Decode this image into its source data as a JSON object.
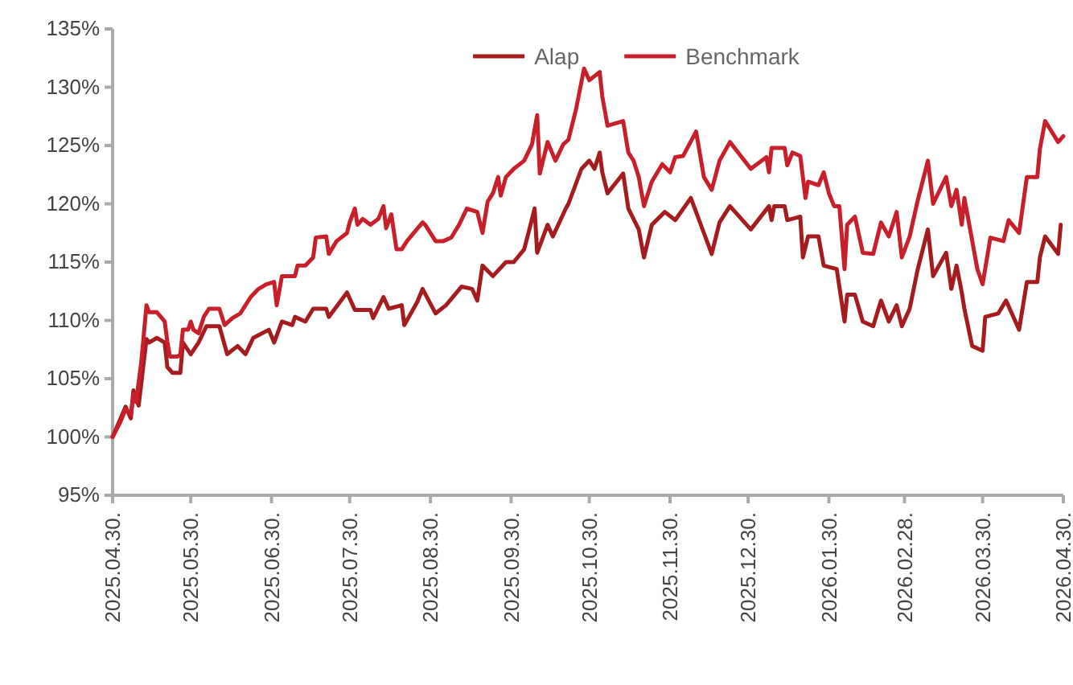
{
  "chart_data": {
    "type": "line",
    "legend": "top",
    "marker": "none",
    "line_style": "solid",
    "grid": false,
    "xlim": [
      "2025-04-30",
      "2026-04-30"
    ],
    "xticks": [
      {
        "value": "2025-04-30",
        "label": "2025.04.30."
      },
      {
        "value": "2025-05-30",
        "label": "2025.05.30."
      },
      {
        "value": "2025-06-30",
        "label": "2025.06.30."
      },
      {
        "value": "2025-07-30",
        "label": "2025.07.30."
      },
      {
        "value": "2025-08-30",
        "label": "2025.08.30."
      },
      {
        "value": "2025-09-30",
        "label": "2025.09.30."
      },
      {
        "value": "2025-10-30",
        "label": "2025.10.30."
      },
      {
        "value": "2025-11-30",
        "label": "2025.11.30."
      },
      {
        "value": "2025-12-30",
        "label": "2025.12.30."
      },
      {
        "value": "2026-01-30",
        "label": "2026.01.30."
      },
      {
        "value": "2026-02-28",
        "label": "2026.02.28."
      },
      {
        "value": "2026-03-30",
        "label": "2026.03.30."
      },
      {
        "value": "2026-04-30",
        "label": "2026.04.30."
      }
    ],
    "ylim": [
      95,
      135
    ],
    "yticks": [
      {
        "value": 95,
        "label": "95%"
      },
      {
        "value": 100,
        "label": "100%"
      },
      {
        "value": 105,
        "label": "105%"
      },
      {
        "value": 110,
        "label": "110%"
      },
      {
        "value": 115,
        "label": "115%"
      },
      {
        "value": 120,
        "label": "120%"
      },
      {
        "value": 125,
        "label": "125%"
      },
      {
        "value": 130,
        "label": "130%"
      },
      {
        "value": 135,
        "label": "135%"
      }
    ],
    "series": [
      {
        "name": "Alap",
        "color": "#a51c1f",
        "x": [
          "2025-04-30",
          "2025-05-05",
          "2025-05-07",
          "2025-05-08",
          "2025-05-10",
          "2025-05-13",
          "2025-05-14",
          "2025-05-17",
          "2025-05-20",
          "2025-05-21",
          "2025-05-23",
          "2025-05-26",
          "2025-05-27",
          "2025-05-30",
          "2025-06-02",
          "2025-06-05",
          "2025-06-10",
          "2025-06-13",
          "2025-06-17",
          "2025-06-20",
          "2025-06-23",
          "2025-06-29",
          "2025-07-01",
          "2025-07-04",
          "2025-07-08",
          "2025-07-09",
          "2025-07-13",
          "2025-07-16",
          "2025-07-21",
          "2025-07-22",
          "2025-07-29",
          "2025-08-01",
          "2025-08-07",
          "2025-08-08",
          "2025-08-12",
          "2025-08-14",
          "2025-08-19",
          "2025-08-20",
          "2025-08-25",
          "2025-08-27",
          "2025-09-01",
          "2025-09-05",
          "2025-09-11",
          "2025-09-15",
          "2025-09-17",
          "2025-09-19",
          "2025-09-23",
          "2025-09-28",
          "2025-10-01",
          "2025-10-05",
          "2025-10-07",
          "2025-10-09",
          "2025-10-10",
          "2025-10-14",
          "2025-10-16",
          "2025-10-21",
          "2025-10-22",
          "2025-10-27",
          "2025-10-30",
          "2025-11-01",
          "2025-11-03",
          "2025-11-04",
          "2025-11-06",
          "2025-11-12",
          "2025-11-14",
          "2025-11-18",
          "2025-11-20",
          "2025-11-23",
          "2025-11-28",
          "2025-12-02",
          "2025-12-08",
          "2025-12-13",
          "2025-12-16",
          "2025-12-19",
          "2025-12-23",
          "2025-12-31",
          "2026-01-07",
          "2026-01-08",
          "2026-01-09",
          "2026-01-13",
          "2026-01-14",
          "2026-01-19",
          "2026-01-20",
          "2026-01-22",
          "2026-01-26",
          "2026-01-28",
          "2026-02-02",
          "2026-02-05",
          "2026-02-06",
          "2026-02-09",
          "2026-02-12",
          "2026-02-16",
          "2026-02-19",
          "2026-02-22",
          "2026-02-25",
          "2026-02-27",
          "2026-03-02",
          "2026-03-05",
          "2026-03-09",
          "2026-03-11",
          "2026-03-16",
          "2026-03-18",
          "2026-03-20",
          "2026-03-22",
          "2026-03-23",
          "2026-03-26",
          "2026-03-30",
          "2026-03-31",
          "2026-04-05",
          "2026-04-08",
          "2026-04-13",
          "2026-04-16",
          "2026-04-20",
          "2026-04-21",
          "2026-04-23",
          "2026-04-28",
          "2026-04-29"
        ],
        "values": [
          100,
          102.6,
          101.6,
          104.0,
          102.7,
          108.4,
          108.1,
          108.5,
          108.1,
          106.0,
          105.5,
          105.5,
          108.1,
          107.1,
          108.1,
          109.5,
          109.5,
          107.1,
          107.8,
          107.1,
          108.5,
          109.2,
          108.1,
          109.9,
          109.6,
          110.3,
          109.9,
          111.0,
          111.0,
          110.3,
          112.4,
          110.9,
          110.9,
          110.2,
          112.0,
          111.0,
          111.3,
          109.6,
          111.6,
          112.7,
          110.6,
          111.3,
          112.9,
          112.7,
          111.7,
          114.7,
          113.8,
          115.0,
          115.0,
          116.1,
          117.8,
          119.6,
          115.8,
          118.2,
          117.2,
          119.6,
          120.0,
          123.0,
          123.7,
          123.0,
          124.4,
          122.7,
          120.9,
          122.6,
          119.6,
          117.8,
          115.4,
          118.2,
          119.3,
          118.6,
          120.5,
          117.5,
          115.7,
          118.4,
          119.8,
          117.8,
          119.8,
          118.6,
          119.8,
          119.8,
          118.6,
          118.9,
          115.4,
          117.2,
          117.2,
          114.7,
          114.4,
          109.9,
          112.2,
          112.2,
          109.9,
          109.5,
          111.7,
          109.9,
          111.3,
          109.5,
          111.0,
          114.3,
          117.8,
          113.8,
          115.8,
          112.7,
          114.7,
          112.4,
          111.0,
          107.8,
          107.4,
          110.3,
          110.6,
          111.7,
          109.2,
          113.3,
          113.3,
          115.4,
          117.2,
          115.7,
          118.2
        ]
      },
      {
        "name": "Benchmark",
        "color": "#c8202a",
        "x": [
          "2025-04-30",
          "2025-05-03",
          "2025-05-05",
          "2025-05-07",
          "2025-05-08",
          "2025-05-09",
          "2025-05-11",
          "2025-05-13",
          "2025-05-14",
          "2025-05-17",
          "2025-05-20",
          "2025-05-21",
          "2025-05-22",
          "2025-05-25",
          "2025-05-26",
          "2025-05-27",
          "2025-05-29",
          "2025-05-30",
          "2025-05-31",
          "2025-06-02",
          "2025-06-04",
          "2025-06-06",
          "2025-06-10",
          "2025-06-12",
          "2025-06-15",
          "2025-06-18",
          "2025-06-22",
          "2025-06-25",
          "2025-06-28",
          "2025-07-01",
          "2025-07-02",
          "2025-07-04",
          "2025-07-07",
          "2025-07-09",
          "2025-07-10",
          "2025-07-13",
          "2025-07-16",
          "2025-07-17",
          "2025-07-21",
          "2025-07-22",
          "2025-07-25",
          "2025-07-29",
          "2025-07-30",
          "2025-08-01",
          "2025-08-02",
          "2025-08-04",
          "2025-08-07",
          "2025-08-10",
          "2025-08-12",
          "2025-08-13",
          "2025-08-15",
          "2025-08-17",
          "2025-08-19",
          "2025-08-21",
          "2025-08-27",
          "2025-08-28",
          "2025-09-01",
          "2025-09-04",
          "2025-09-07",
          "2025-09-10",
          "2025-09-13",
          "2025-09-17",
          "2025-09-19",
          "2025-09-21",
          "2025-09-23",
          "2025-09-25",
          "2025-09-26",
          "2025-09-28",
          "2025-10-01",
          "2025-10-05",
          "2025-10-08",
          "2025-10-10",
          "2025-10-11",
          "2025-10-14",
          "2025-10-17",
          "2025-10-20",
          "2025-10-22",
          "2025-10-25",
          "2025-10-28",
          "2025-10-30",
          "2025-11-03",
          "2025-11-04",
          "2025-11-06",
          "2025-11-12",
          "2025-11-14",
          "2025-11-16",
          "2025-11-18",
          "2025-11-20",
          "2025-11-23",
          "2025-11-27",
          "2025-11-30",
          "2025-12-02",
          "2025-12-05",
          "2025-12-10",
          "2025-12-13",
          "2025-12-16",
          "2025-12-19",
          "2025-12-23",
          "2025-12-31",
          "2026-01-06",
          "2026-01-07",
          "2026-01-08",
          "2026-01-13",
          "2026-01-14",
          "2026-01-16",
          "2026-01-19",
          "2026-01-21",
          "2026-01-22",
          "2026-01-26",
          "2026-01-28",
          "2026-01-30",
          "2026-02-01",
          "2026-02-03",
          "2026-02-05",
          "2026-02-06",
          "2026-02-09",
          "2026-02-12",
          "2026-02-16",
          "2026-02-19",
          "2026-02-22",
          "2026-02-25",
          "2026-02-27",
          "2026-03-02",
          "2026-03-05",
          "2026-03-09",
          "2026-03-11",
          "2026-03-16",
          "2026-03-18",
          "2026-03-20",
          "2026-03-22",
          "2026-03-23",
          "2026-03-28",
          "2026-03-30",
          "2026-04-02",
          "2026-04-07",
          "2026-04-09",
          "2026-04-13",
          "2026-04-16",
          "2026-04-20",
          "2026-04-21",
          "2026-04-23",
          "2026-04-28",
          "2026-04-30"
        ],
        "values": [
          100,
          101.3,
          102.4,
          101.9,
          103.7,
          103.0,
          106.4,
          111.3,
          110.7,
          110.7,
          109.9,
          108.2,
          106.9,
          106.9,
          107.1,
          109.2,
          109.2,
          109.9,
          109.2,
          108.9,
          110.3,
          111.0,
          111.0,
          109.6,
          110.2,
          110.6,
          112.0,
          112.7,
          113.1,
          113.3,
          111.3,
          113.8,
          113.8,
          113.8,
          114.7,
          114.7,
          115.4,
          117.1,
          117.2,
          115.7,
          116.8,
          117.5,
          118.4,
          119.6,
          118.2,
          118.7,
          118.2,
          118.7,
          119.8,
          117.9,
          119.1,
          116.1,
          116.1,
          116.8,
          118.4,
          118.2,
          116.8,
          116.8,
          117.1,
          118.2,
          119.6,
          119.3,
          117.5,
          120.2,
          120.9,
          122.3,
          120.7,
          122.3,
          123.0,
          123.7,
          125.1,
          127.6,
          122.6,
          125.3,
          123.7,
          125.1,
          125.5,
          128.2,
          131.6,
          130.6,
          131.3,
          129.2,
          126.7,
          127.1,
          124.4,
          123.7,
          122.3,
          119.8,
          121.9,
          123.4,
          122.7,
          124.0,
          124.1,
          126.2,
          122.3,
          121.2,
          123.7,
          125.3,
          123.0,
          124.0,
          122.7,
          124.8,
          124.8,
          123.3,
          124.4,
          124.1,
          120.5,
          121.9,
          121.6,
          122.7,
          120.9,
          119.8,
          119.8,
          114.4,
          118.2,
          118.9,
          115.8,
          115.7,
          118.4,
          117.2,
          119.3,
          115.4,
          117.2,
          120.2,
          123.7,
          120.0,
          122.3,
          119.8,
          121.2,
          118.2,
          120.5,
          114.4,
          113.1,
          117.1,
          116.8,
          118.6,
          117.5,
          122.3,
          122.3,
          124.7,
          127.1,
          125.3,
          125.8
        ]
      }
    ]
  }
}
